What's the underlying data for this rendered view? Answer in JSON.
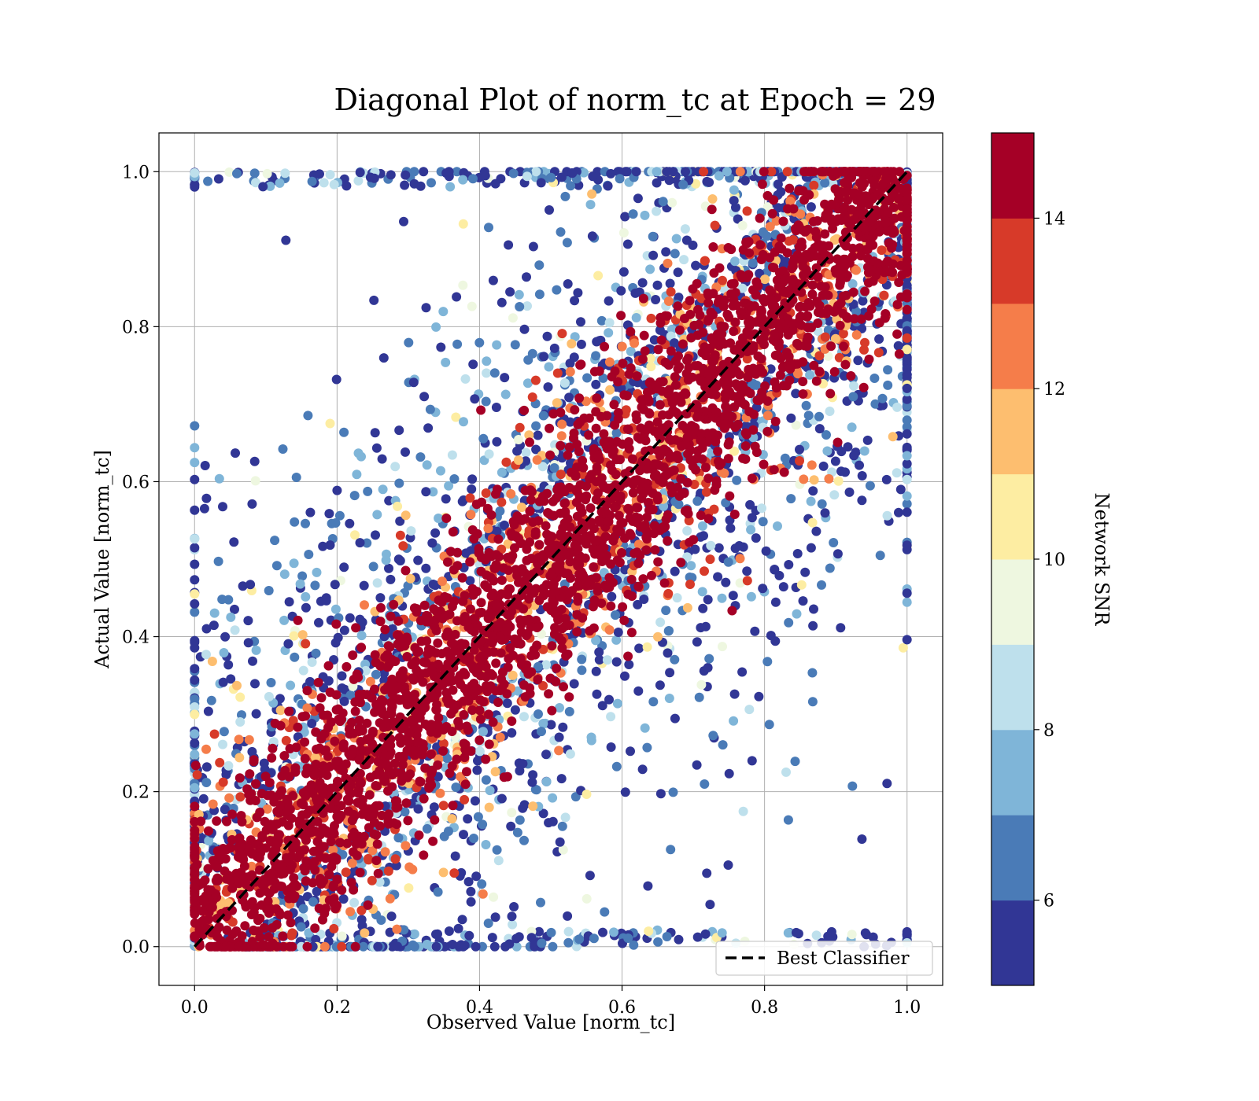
{
  "chart_data": {
    "type": "scatter",
    "title": "Diagonal Plot of norm_tc at Epoch = 29",
    "xlabel": "Observed Value [norm_tc]",
    "ylabel": "Actual Value [norm_tc]",
    "xlim": [
      -0.05,
      1.05
    ],
    "ylim": [
      -0.05,
      1.05
    ],
    "x_ticks": [
      "0.0",
      "0.2",
      "0.4",
      "0.6",
      "0.8",
      "1.0"
    ],
    "y_ticks": [
      "0.0",
      "0.2",
      "0.4",
      "0.6",
      "0.8",
      "1.0"
    ],
    "grid": true,
    "legend": {
      "placement": "lower-right",
      "entries": [
        {
          "label": "Best Classifier",
          "style": "black dashed line"
        }
      ]
    },
    "reference_line": {
      "label": "Best Classifier",
      "x": [
        0,
        1
      ],
      "y": [
        0,
        1
      ],
      "color": "#000000",
      "style": "dashed"
    },
    "colorbar": {
      "label": "Network SNR",
      "range": [
        5,
        15
      ],
      "ticks": [
        "6",
        "8",
        "10",
        "12",
        "14"
      ],
      "colormap": "RdYlBu_r",
      "levels": [
        {
          "from": 5,
          "to": 6,
          "color": "#313695"
        },
        {
          "from": 6,
          "to": 7,
          "color": "#4a7bb7"
        },
        {
          "from": 7,
          "to": 8,
          "color": "#7fb5d8"
        },
        {
          "from": 8,
          "to": 9,
          "color": "#bee0ec"
        },
        {
          "from": 9,
          "to": 10,
          "color": "#eef7e0"
        },
        {
          "from": 10,
          "to": 11,
          "color": "#fdeda2"
        },
        {
          "from": 11,
          "to": 12,
          "color": "#fdbe6f"
        },
        {
          "from": 12,
          "to": 13,
          "color": "#f57d4a"
        },
        {
          "from": 13,
          "to": 14,
          "color": "#d73a29"
        },
        {
          "from": 14,
          "to": 15,
          "color": "#a50026"
        }
      ]
    },
    "series": [
      {
        "description_of_points": "dense band along y = x with high SNR (>=14)",
        "snr": 15,
        "approx_count": 2600,
        "spread_perpendicular": 0.08
      },
      {
        "description_of_points": "band edge points, SNR 12-14",
        "snr": 13,
        "approx_count": 900,
        "spread_perpendicular": 0.11
      },
      {
        "description_of_points": "scattered low-SNR outliers (5-10) above and below the diagonal",
        "snr": 6,
        "approx_count": 2600,
        "spread_perpendicular": 0.7
      }
    ]
  }
}
